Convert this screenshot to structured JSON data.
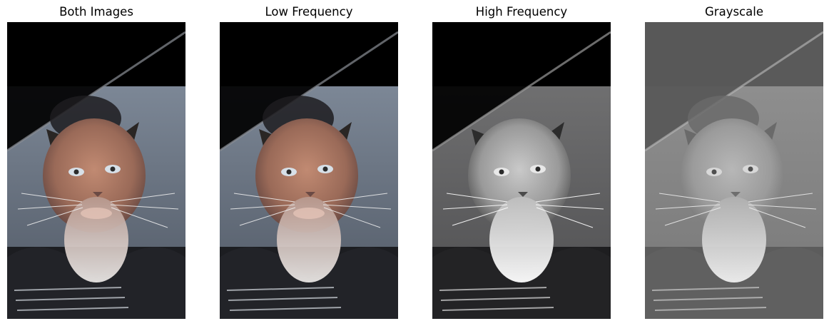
{
  "figure": {
    "panels": [
      {
        "title": "Both Images",
        "variant": "color",
        "tint": "#a86b55"
      },
      {
        "title": "Low Frequency",
        "variant": "color",
        "tint": "#a86b55"
      },
      {
        "title": "High Frequency",
        "variant": "contrast",
        "tint": "#9a9a9a"
      },
      {
        "title": "Grayscale",
        "variant": "gray",
        "tint": "#8a8a8a"
      }
    ]
  }
}
